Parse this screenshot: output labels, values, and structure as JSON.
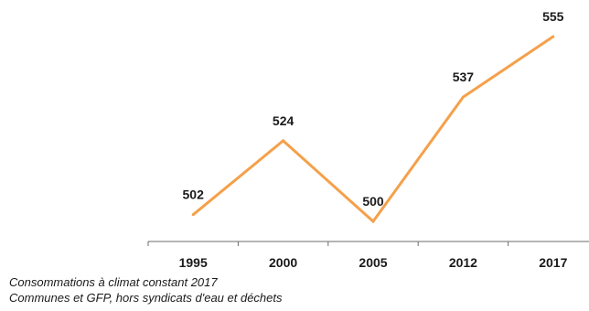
{
  "chart_data": {
    "type": "line",
    "categories": [
      "1995",
      "2000",
      "2005",
      "2012",
      "2017"
    ],
    "values": [
      502,
      524,
      500,
      537,
      555
    ],
    "title": "",
    "xlabel": "",
    "ylabel": "",
    "ylim": [
      500,
      555
    ],
    "grid": false,
    "legend": "none",
    "line_color": "#F5A04A",
    "axis_color": "#6b6b6b"
  },
  "notes": {
    "line1": "Consommations à climat constant 2017",
    "line2": "Communes et GFP, hors syndicats d'eau et déchets"
  }
}
